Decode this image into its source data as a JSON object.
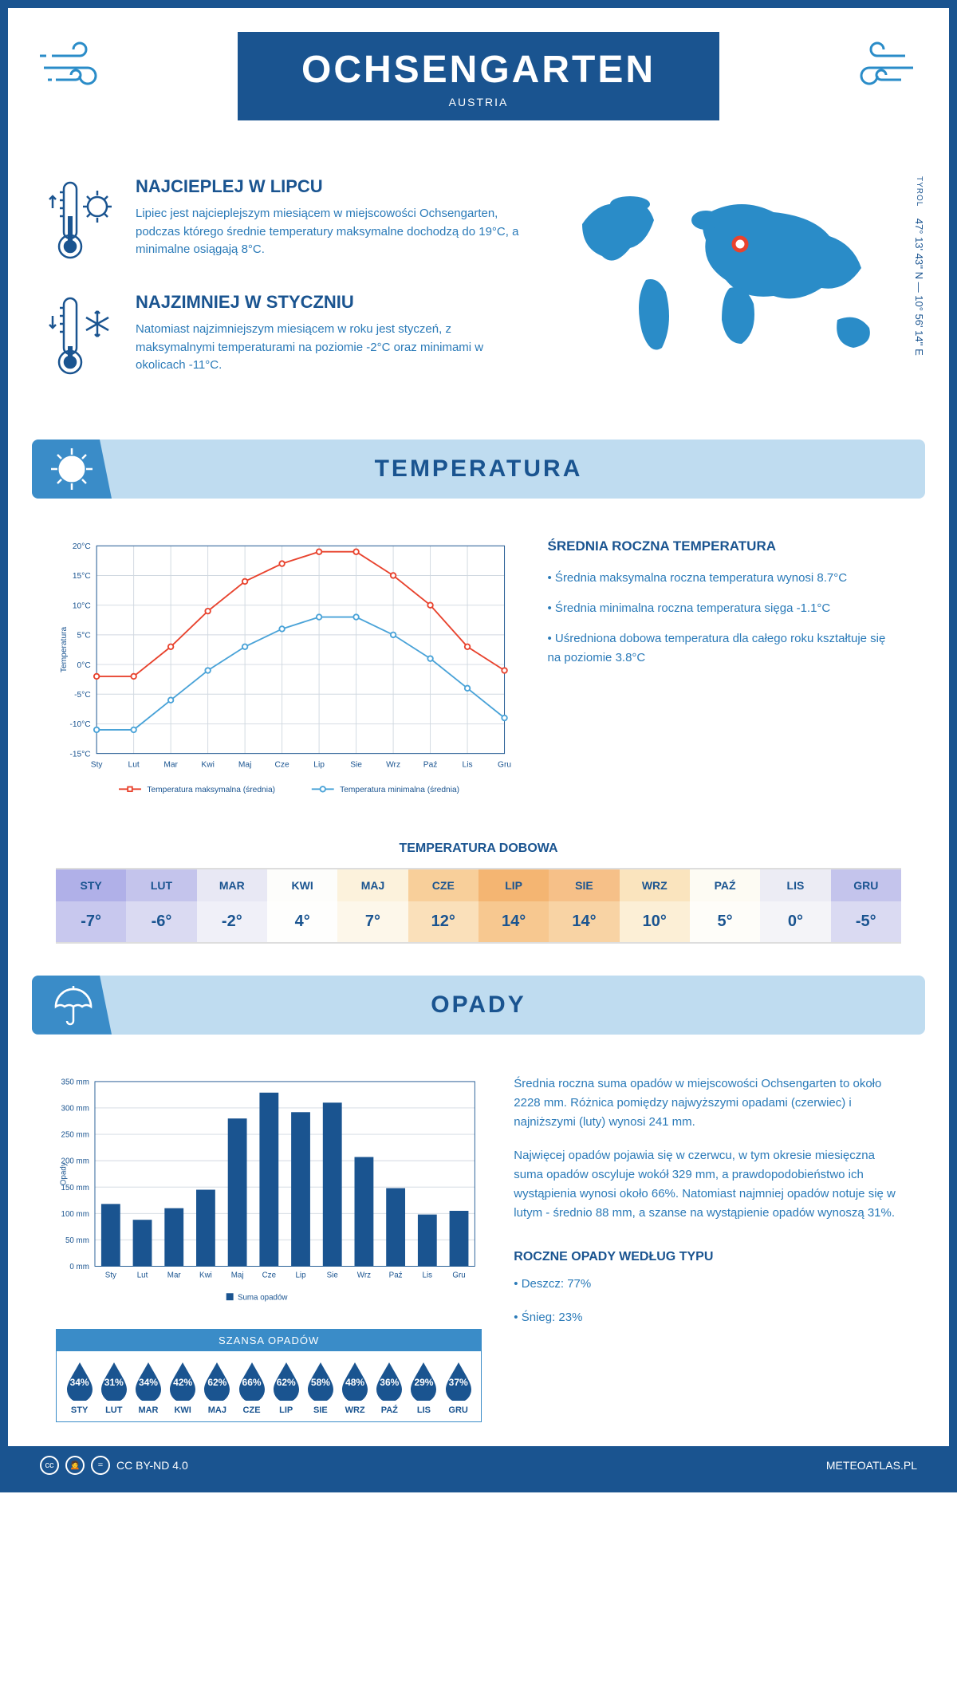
{
  "header": {
    "title": "OCHSENGARTEN",
    "country": "AUSTRIA"
  },
  "location": {
    "region": "TYROL",
    "coords": "47° 13' 43'' N — 10° 56' 14'' E",
    "marker_color": "#e8432e",
    "map_color": "#2a8cc8"
  },
  "warmest": {
    "title": "NAJCIEPLEJ W LIPCU",
    "text": "Lipiec jest najcieplejszym miesiącem w miejscowości Ochsengarten, podczas którego średnie temperatury maksymalne dochodzą do 19°C, a minimalne osiągają 8°C."
  },
  "coldest": {
    "title": "NAJZIMNIEJ W STYCZNIU",
    "text": "Natomiast najzimniejszym miesiącem w roku jest styczeń, z maksymalnymi temperaturami na poziomie -2°C oraz minimami w okolicach -11°C."
  },
  "temperature_section": {
    "title": "TEMPERATURA",
    "chart": {
      "type": "line",
      "months": [
        "Sty",
        "Lut",
        "Mar",
        "Kwi",
        "Maj",
        "Cze",
        "Lip",
        "Sie",
        "Wrz",
        "Paź",
        "Lis",
        "Gru"
      ],
      "ylabel": "Temperatura",
      "ylim": [
        -15,
        20
      ],
      "ytick_step": 5,
      "max_series": {
        "label": "Temperatura maksymalna (średnia)",
        "color": "#e8432e",
        "values": [
          -2,
          -2,
          3,
          9,
          14,
          17,
          19,
          19,
          15,
          10,
          3,
          -1
        ]
      },
      "min_series": {
        "label": "Temperatura minimalna (średnia)",
        "color": "#4aa3d8",
        "values": [
          -11,
          -11,
          -6,
          -1,
          3,
          6,
          8,
          8,
          5,
          1,
          -4,
          -9
        ]
      },
      "grid_color": "#d0d8e0",
      "background": "#ffffff"
    },
    "annual": {
      "title": "ŚREDNIA ROCZNA TEMPERATURA",
      "b1": "• Średnia maksymalna roczna temperatura wynosi 8.7°C",
      "b2": "• Średnia minimalna roczna temperatura sięga -1.1°C",
      "b3": "• Uśredniona dobowa temperatura dla całego roku kształtuje się na poziomie 3.8°C"
    }
  },
  "daily_temp": {
    "title": "TEMPERATURA DOBOWA",
    "months": [
      "STY",
      "LUT",
      "MAR",
      "KWI",
      "MAJ",
      "CZE",
      "LIP",
      "SIE",
      "WRZ",
      "PAŹ",
      "LIS",
      "GRU"
    ],
    "values": [
      "-7°",
      "-6°",
      "-2°",
      "4°",
      "7°",
      "12°",
      "14°",
      "14°",
      "10°",
      "5°",
      "0°",
      "-5°"
    ],
    "colors": {
      "header": [
        "#b0b0e8",
        "#c4c4ec",
        "#e8e8f4",
        "#fdfdfb",
        "#fcf2dc",
        "#f8cf9a",
        "#f4b572",
        "#f6c088",
        "#fae4be",
        "#fdfbf3",
        "#ececf4",
        "#c4c4ec"
      ],
      "body": [
        "#c8c8ee",
        "#dadaf2",
        "#f0f0f8",
        "#fefefd",
        "#fdf7ea",
        "#fae0ba",
        "#f7c890",
        "#f8d3a4",
        "#fcefd6",
        "#fefdf9",
        "#f4f4f8",
        "#dadaf2"
      ],
      "text": "#1a5490"
    }
  },
  "precipitation_section": {
    "title": "OPADY",
    "chart": {
      "type": "bar",
      "months": [
        "Sty",
        "Lut",
        "Mar",
        "Kwi",
        "Maj",
        "Cze",
        "Lip",
        "Sie",
        "Wrz",
        "Paź",
        "Lis",
        "Gru"
      ],
      "ylabel": "Opady",
      "ylim": [
        0,
        350
      ],
      "ytick_step": 50,
      "values": [
        118,
        88,
        110,
        145,
        280,
        329,
        292,
        310,
        207,
        148,
        98,
        105
      ],
      "bar_color": "#1a5490",
      "grid_color": "#d0d8e0",
      "legend": "Suma opadów"
    },
    "p1": "Średnia roczna suma opadów w miejscowości Ochsengarten to około 2228 mm. Różnica pomiędzy najwyższymi opadami (czerwiec) i najniższymi (luty) wynosi 241 mm.",
    "p2": "Najwięcej opadów pojawia się w czerwcu, w tym okresie miesięczna suma opadów oscyluje wokół 329 mm, a prawdopodobieństwo ich wystąpienia wynosi około 66%. Natomiast najmniej opadów notuje się w lutym - średnio 88 mm, a szanse na wystąpienie opadów wynoszą 31%.",
    "by_type": {
      "title": "ROCZNE OPADY WEDŁUG TYPU",
      "rain": "• Deszcz: 77%",
      "snow": "• Śnieg: 23%"
    }
  },
  "chance": {
    "title": "SZANSA OPADÓW",
    "months": [
      "STY",
      "LUT",
      "MAR",
      "KWI",
      "MAJ",
      "CZE",
      "LIP",
      "SIE",
      "WRZ",
      "PAŹ",
      "LIS",
      "GRU"
    ],
    "values": [
      "34%",
      "31%",
      "34%",
      "42%",
      "62%",
      "66%",
      "62%",
      "58%",
      "48%",
      "36%",
      "29%",
      "37%"
    ],
    "drop_color": "#1a5490"
  },
  "footer": {
    "license": "CC BY-ND 4.0",
    "site": "METEOATLAS.PL"
  },
  "colors": {
    "primary": "#1a5490",
    "light_blue": "#bfdcf0",
    "mid_blue": "#3a8cc8"
  }
}
